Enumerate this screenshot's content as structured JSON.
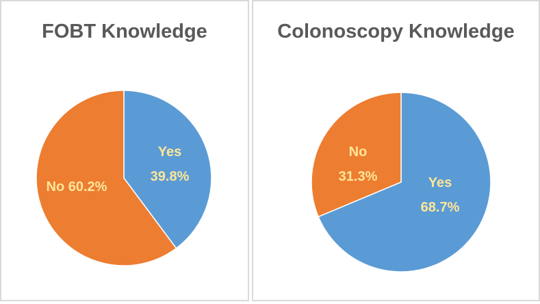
{
  "chart_data": [
    {
      "type": "pie",
      "title": "FOBT Knowledge",
      "slices": [
        {
          "label": "Yes",
          "value": 39.8,
          "value_label": "39.8%",
          "color": "#5b9bd5"
        },
        {
          "label": "No",
          "value": 60.2,
          "value_label": "60.2%",
          "color": "#ed7d31"
        }
      ],
      "start": "12 o'clock",
      "direction": "clockwise",
      "label_color": "#ffe699"
    },
    {
      "type": "pie",
      "title": "Colonoscopy Knowledge",
      "slices": [
        {
          "label": "Yes",
          "value": 68.7,
          "value_label": "68.7%",
          "color": "#5b9bd5"
        },
        {
          "label": "No",
          "value": 31.3,
          "value_label": "31.3%",
          "color": "#ed7d31"
        }
      ],
      "start": "12 o'clock",
      "direction": "clockwise",
      "label_color": "#ffe699"
    }
  ]
}
